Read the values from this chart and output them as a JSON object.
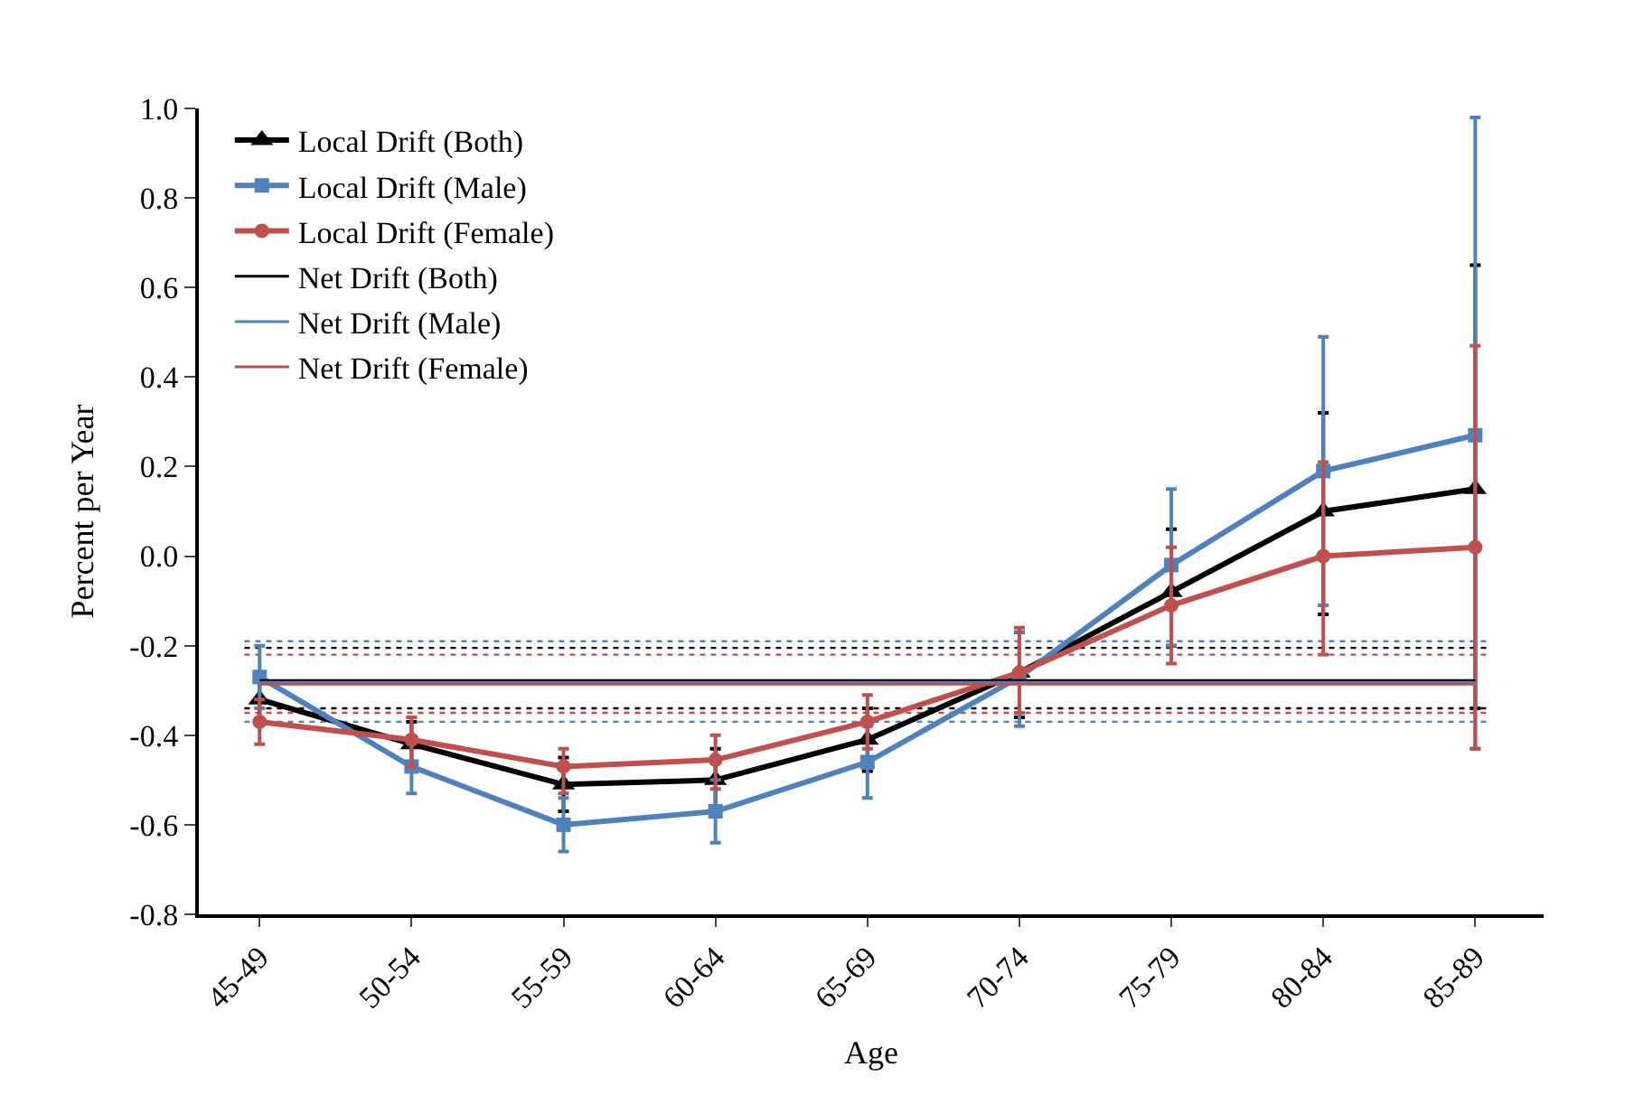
{
  "chart_data": {
    "type": "line",
    "xlabel": "Age",
    "ylabel": "Percent per Year",
    "categories": [
      "45-49",
      "50-54",
      "55-59",
      "60-64",
      "65-69",
      "70-74",
      "75-79",
      "80-84",
      "85-89"
    ],
    "ylim": [
      -0.8,
      1.0
    ],
    "yticks": [
      {
        "value": -0.8,
        "label": "-0.8"
      },
      {
        "value": -0.6,
        "label": "-0.6"
      },
      {
        "value": -0.4,
        "label": "-0.4"
      },
      {
        "value": -0.2,
        "label": "-0.2"
      },
      {
        "value": 0,
        "label": "0.0"
      },
      {
        "value": 0.2,
        "label": "0.2"
      },
      {
        "value": 0.4,
        "label": "0.4"
      },
      {
        "value": 0.6,
        "label": "0.6"
      },
      {
        "value": 0.8,
        "label": "0.8"
      },
      {
        "value": 1.0,
        "label": "1.0"
      }
    ],
    "grid": false,
    "legend": "top left",
    "series": [
      {
        "name": "Local Drift (Both)",
        "color": "#000000",
        "marker": "triangle",
        "values": [
          -0.32,
          -0.42,
          -0.51,
          -0.5,
          -0.41,
          -0.26,
          -0.08,
          0.1,
          0.15
        ],
        "errors": [
          [
            -0.37,
            -0.27
          ],
          [
            -0.47,
            -0.37
          ],
          [
            -0.57,
            -0.45
          ],
          [
            -0.56,
            -0.43
          ],
          [
            -0.48,
            -0.34
          ],
          [
            -0.36,
            -0.17
          ],
          [
            -0.2,
            0.06
          ],
          [
            -0.13,
            0.32
          ],
          [
            -0.34,
            0.65
          ]
        ]
      },
      {
        "name": "Local Drift (Male)",
        "color": "#4f81bd",
        "marker": "square",
        "values": [
          -0.27,
          -0.47,
          -0.6,
          -0.57,
          -0.46,
          -0.27,
          -0.02,
          0.19,
          0.27
        ],
        "errors": [
          [
            -0.34,
            -0.2
          ],
          [
            -0.53,
            -0.41
          ],
          [
            -0.66,
            -0.54
          ],
          [
            -0.64,
            -0.5
          ],
          [
            -0.54,
            -0.38
          ],
          [
            -0.38,
            -0.17
          ],
          [
            -0.2,
            0.15
          ],
          [
            -0.11,
            0.49
          ],
          [
            -0.43,
            0.98
          ]
        ]
      },
      {
        "name": "Local Drift (Female)",
        "color": "#c0504d",
        "marker": "circle",
        "values": [
          -0.37,
          -0.41,
          -0.47,
          -0.455,
          -0.37,
          -0.26,
          -0.11,
          0.0,
          0.02
        ],
        "errors": [
          [
            -0.42,
            -0.32
          ],
          [
            -0.47,
            -0.36
          ],
          [
            -0.53,
            -0.43
          ],
          [
            -0.52,
            -0.4
          ],
          [
            -0.43,
            -0.31
          ],
          [
            -0.35,
            -0.16
          ],
          [
            -0.24,
            0.02
          ],
          [
            -0.22,
            0.21
          ],
          [
            -0.43,
            0.47
          ]
        ]
      },
      {
        "name": "Net Drift (Both)",
        "color": "#000000",
        "marker": "none",
        "values": [
          -0.278,
          -0.278,
          -0.278,
          -0.278,
          -0.278,
          -0.278,
          -0.278,
          -0.278,
          -0.278
        ]
      },
      {
        "name": "Net Drift (Male)",
        "color": "#4f81bd",
        "marker": "none",
        "values": [
          -0.282,
          -0.282,
          -0.282,
          -0.282,
          -0.282,
          -0.282,
          -0.282,
          -0.282,
          -0.282
        ]
      },
      {
        "name": "Net Drift (Female)",
        "color": "#c0504d",
        "marker": "none",
        "values": [
          -0.286,
          -0.286,
          -0.286,
          -0.286,
          -0.286,
          -0.286,
          -0.286,
          -0.286,
          -0.286
        ]
      }
    ],
    "ref_lines": [
      {
        "axis": "y",
        "value": -0.19,
        "color": "#4f81bd",
        "line_style": "dotted"
      },
      {
        "axis": "y",
        "value": -0.205,
        "color": "#000000",
        "line_style": "dotted"
      },
      {
        "axis": "y",
        "value": -0.22,
        "color": "#c0504d",
        "line_style": "dotted"
      },
      {
        "axis": "y",
        "value": -0.34,
        "color": "#000000",
        "line_style": "dotted"
      },
      {
        "axis": "y",
        "value": -0.35,
        "color": "#c0504d",
        "line_style": "dotted"
      },
      {
        "axis": "y",
        "value": -0.37,
        "color": "#4f81bd",
        "line_style": "dotted"
      }
    ]
  }
}
